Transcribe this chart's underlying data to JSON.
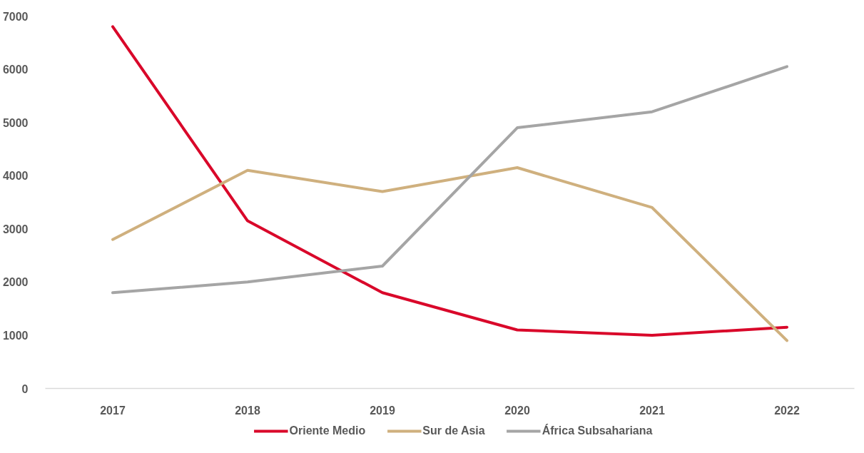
{
  "chart_data": {
    "type": "line",
    "categories": [
      "2017",
      "2018",
      "2019",
      "2020",
      "2021",
      "2022"
    ],
    "series": [
      {
        "name": "Oriente Medio",
        "color": "#d9082a",
        "values": [
          6800,
          3150,
          1800,
          1100,
          1000,
          1150
        ]
      },
      {
        "name": "Sur de Asia",
        "color": "#cfb07e",
        "values": [
          2800,
          4100,
          3700,
          4150,
          3400,
          900
        ]
      },
      {
        "name": "África Subsahariana",
        "color": "#a5a5a5",
        "values": [
          1800,
          2000,
          2300,
          4900,
          5200,
          6050
        ]
      }
    ],
    "ylim": [
      0,
      7000
    ],
    "yticks": [
      0,
      1000,
      2000,
      3000,
      4000,
      5000,
      6000,
      7000
    ],
    "grid": false,
    "legend": "bottom",
    "line_style": "solid"
  }
}
